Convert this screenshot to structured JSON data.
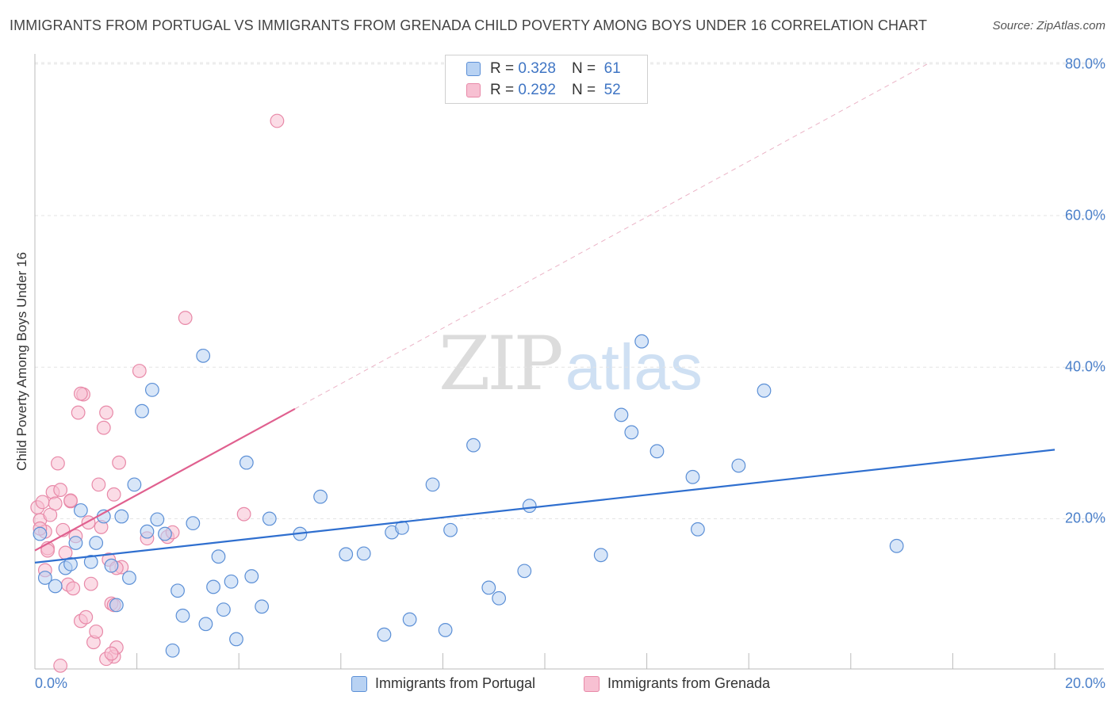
{
  "header": {
    "title": "IMMIGRANTS FROM PORTUGAL VS IMMIGRANTS FROM GRENADA CHILD POVERTY AMONG BOYS UNDER 16 CORRELATION CHART",
    "source": "Source: ZipAtlas.com"
  },
  "watermark": {
    "zip": "ZIP",
    "atlas": "atlas"
  },
  "legend": {
    "r_label": "R =",
    "n_label": "N =",
    "portugal_r": "0.328",
    "portugal_n": "61",
    "grenada_r": "0.292",
    "grenada_n": "52"
  },
  "colors": {
    "portugal_fill": "#b8d2f3",
    "portugal_stroke": "#5b8fd6",
    "portugal_line": "#2f6fcf",
    "grenada_fill": "#f7c0d2",
    "grenada_stroke": "#e889a8",
    "grenada_line": "#e0608f",
    "tick_text": "#4a7fc9"
  },
  "chart_data": {
    "type": "scatter",
    "title": "IMMIGRANTS FROM PORTUGAL VS IMMIGRANTS FROM GRENADA CHILD POVERTY AMONG BOYS UNDER 16 CORRELATION CHART",
    "xlabel": "",
    "ylabel": "Child Poverty Among Boys Under 16",
    "xlim": [
      0,
      20
    ],
    "ylim": [
      0,
      82
    ],
    "x_tick_labels": [
      "0.0%",
      "20.0%"
    ],
    "y_ticks": [
      20,
      40,
      60,
      80
    ],
    "y_tick_labels": [
      "20.0%",
      "40.0%",
      "60.0%",
      "80.0%"
    ],
    "grid": true,
    "legend_position": "top-center",
    "series": [
      {
        "name": "Immigrants from Portugal",
        "R": 0.328,
        "N": 61,
        "trend": {
          "x": [
            0,
            20
          ],
          "y": [
            14.2,
            29.1
          ]
        },
        "points": [
          [
            0.1,
            18.0
          ],
          [
            0.2,
            12.2
          ],
          [
            0.4,
            11.1
          ],
          [
            0.6,
            13.5
          ],
          [
            0.7,
            14.0
          ],
          [
            0.8,
            16.8
          ],
          [
            0.9,
            21.1
          ],
          [
            1.1,
            14.3
          ],
          [
            1.2,
            16.8
          ],
          [
            1.35,
            20.3
          ],
          [
            1.5,
            13.8
          ],
          [
            1.6,
            8.6
          ],
          [
            1.7,
            20.3
          ],
          [
            1.85,
            12.2
          ],
          [
            1.95,
            24.5
          ],
          [
            2.1,
            34.2
          ],
          [
            2.2,
            18.3
          ],
          [
            2.3,
            37.0
          ],
          [
            2.4,
            19.9
          ],
          [
            2.55,
            18.0
          ],
          [
            2.7,
            2.6
          ],
          [
            2.8,
            10.5
          ],
          [
            2.9,
            7.2
          ],
          [
            3.1,
            19.4
          ],
          [
            3.3,
            41.5
          ],
          [
            3.35,
            6.1
          ],
          [
            3.5,
            11.0
          ],
          [
            3.6,
            15.0
          ],
          [
            3.7,
            8.0
          ],
          [
            3.85,
            11.7
          ],
          [
            3.95,
            4.1
          ],
          [
            4.15,
            27.4
          ],
          [
            4.25,
            12.4
          ],
          [
            4.45,
            8.4
          ],
          [
            4.6,
            20.0
          ],
          [
            5.2,
            18.0
          ],
          [
            5.6,
            22.9
          ],
          [
            6.1,
            15.3
          ],
          [
            6.45,
            15.4
          ],
          [
            6.85,
            4.7
          ],
          [
            7.0,
            18.2
          ],
          [
            7.2,
            18.8
          ],
          [
            7.35,
            6.7
          ],
          [
            7.8,
            24.5
          ],
          [
            8.05,
            5.3
          ],
          [
            8.15,
            18.5
          ],
          [
            8.6,
            29.7
          ],
          [
            8.9,
            10.9
          ],
          [
            9.1,
            9.5
          ],
          [
            9.6,
            13.1
          ],
          [
            9.7,
            21.7
          ],
          [
            11.1,
            15.2
          ],
          [
            11.5,
            33.7
          ],
          [
            11.7,
            31.4
          ],
          [
            12.2,
            28.9
          ],
          [
            11.9,
            43.4
          ],
          [
            12.9,
            25.5
          ],
          [
            13.8,
            27.0
          ],
          [
            13.0,
            18.6
          ],
          [
            14.3,
            36.9
          ],
          [
            16.9,
            16.4
          ]
        ]
      },
      {
        "name": "Immigrants from Grenada",
        "R": 0.292,
        "N": 52,
        "trend": {
          "x": [
            0,
            5.1
          ],
          "y": [
            15.8,
            34.5
          ]
        },
        "trend_extension": {
          "x": [
            5.1,
            17.5
          ],
          "y": [
            34.5,
            80.0
          ]
        },
        "points": [
          [
            0.05,
            21.5
          ],
          [
            0.1,
            19.8
          ],
          [
            0.15,
            22.2
          ],
          [
            0.2,
            18.3
          ],
          [
            0.25,
            16.1
          ],
          [
            0.3,
            20.5
          ],
          [
            0.35,
            23.5
          ],
          [
            0.4,
            22.0
          ],
          [
            0.45,
            27.3
          ],
          [
            0.5,
            23.8
          ],
          [
            0.55,
            18.5
          ],
          [
            0.6,
            15.5
          ],
          [
            0.65,
            11.3
          ],
          [
            0.7,
            22.3
          ],
          [
            0.75,
            10.8
          ],
          [
            0.8,
            17.7
          ],
          [
            0.85,
            34.0
          ],
          [
            0.9,
            6.5
          ],
          [
            0.95,
            36.4
          ],
          [
            1.0,
            7.0
          ],
          [
            1.05,
            19.5
          ],
          [
            1.1,
            11.4
          ],
          [
            1.15,
            3.7
          ],
          [
            1.2,
            5.1
          ],
          [
            1.25,
            24.5
          ],
          [
            1.3,
            18.9
          ],
          [
            1.35,
            32.0
          ],
          [
            1.4,
            34.0
          ],
          [
            1.45,
            14.6
          ],
          [
            1.5,
            8.8
          ],
          [
            1.55,
            1.8
          ],
          [
            1.6,
            3.0
          ],
          [
            1.65,
            27.4
          ],
          [
            1.7,
            13.6
          ],
          [
            1.55,
            23.2
          ],
          [
            0.5,
            0.6
          ],
          [
            1.4,
            1.5
          ],
          [
            1.5,
            2.2
          ],
          [
            1.6,
            13.5
          ],
          [
            1.55,
            8.6
          ],
          [
            0.9,
            36.5
          ],
          [
            0.7,
            22.4
          ],
          [
            0.2,
            13.2
          ],
          [
            0.25,
            15.8
          ],
          [
            0.1,
            18.7
          ],
          [
            2.05,
            39.5
          ],
          [
            2.2,
            17.4
          ],
          [
            2.6,
            17.6
          ],
          [
            2.7,
            18.2
          ],
          [
            2.95,
            46.5
          ],
          [
            4.1,
            20.6
          ],
          [
            4.75,
            72.5
          ]
        ]
      }
    ]
  },
  "bottom_legend": {
    "portugal_label": "Immigrants from Portugal",
    "grenada_label": "Immigrants from Grenada"
  }
}
